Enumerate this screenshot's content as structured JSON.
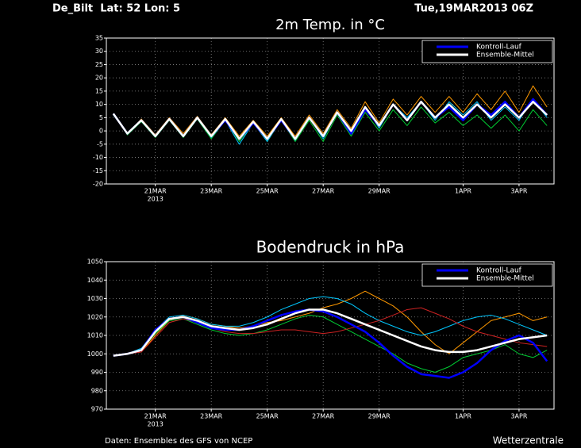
{
  "header": {
    "station": "De_Bilt  Lat: 52 Lon: 5",
    "run": "Tue,19MAR2013 06Z"
  },
  "footer": {
    "source": "Daten: Ensembles des GFS von NCEP",
    "brand": "Wetterzentrale"
  },
  "chart_data": [
    {
      "type": "line",
      "title": "2m Temp. in °C",
      "year": "2013",
      "legend": "upper right",
      "grid": true,
      "x": [
        19.5,
        20,
        20.5,
        21,
        21.5,
        22,
        22.5,
        23,
        23.5,
        24,
        24.5,
        25,
        25.5,
        26,
        26.5,
        27,
        27.5,
        28,
        28.5,
        29,
        29.5,
        30,
        30.5,
        31,
        31.5,
        32,
        32.5,
        33,
        33.5,
        34,
        34.5,
        35
      ],
      "xlim": [
        19.25,
        35.25
      ],
      "xticks": [
        {
          "value": 21,
          "label": "21MAR"
        },
        {
          "value": 23,
          "label": "23MAR"
        },
        {
          "value": 25,
          "label": "25MAR"
        },
        {
          "value": 27,
          "label": "27MAR"
        },
        {
          "value": 29,
          "label": "29MAR"
        },
        {
          "value": 32,
          "label": "1APR"
        },
        {
          "value": 34,
          "label": "3APR"
        }
      ],
      "ylim": [
        -20,
        35
      ],
      "yticks": [
        -20,
        -15,
        -10,
        -5,
        0,
        5,
        10,
        15,
        20,
        25,
        30,
        35
      ],
      "series": [
        {
          "color": "#ff9900",
          "values": [
            6.5,
            -1,
            4.5,
            -1.5,
            5,
            -1,
            5.5,
            -1.5,
            5,
            -2,
            4,
            -2,
            5,
            -2,
            6,
            -1,
            8,
            1,
            11,
            3,
            12,
            6,
            13,
            7,
            13,
            7,
            14,
            8,
            15,
            7,
            17,
            9
          ]
        },
        {
          "color": "#00cc33",
          "values": [
            6.5,
            -1.5,
            3.5,
            -2.5,
            4,
            -2.5,
            4.5,
            -3,
            4,
            -4,
            3,
            -4,
            4,
            -4,
            4,
            -4,
            6,
            -2,
            7,
            0,
            8,
            2,
            9,
            3,
            7,
            2,
            6,
            1,
            6,
            0,
            8,
            2
          ]
        },
        {
          "color": "#00c8ff",
          "values": [
            6,
            -1,
            4,
            -2,
            4.5,
            -2,
            5,
            -2.5,
            4,
            -5,
            3,
            -4,
            4.5,
            -3.5,
            5,
            -3,
            7,
            -1,
            9,
            1,
            10,
            5,
            11,
            4,
            11,
            6,
            11,
            4,
            9,
            4,
            12,
            5
          ]
        },
        {
          "name": "Kontroll-Lauf",
          "color": "#0000ff",
          "values": [
            6.5,
            -1,
            4,
            -2,
            4.5,
            -2,
            5,
            -2,
            4,
            -3,
            3,
            -3,
            4,
            -3,
            5,
            -2,
            7,
            -1,
            8,
            2,
            10,
            4,
            11,
            5,
            9,
            4,
            10,
            6,
            11,
            5,
            12,
            6
          ]
        },
        {
          "name": "Ensemble-Mittel",
          "color": "#ffffff",
          "values": [
            6.5,
            -1,
            4,
            -2,
            4.5,
            -2,
            5,
            -2,
            4.5,
            -3,
            3.5,
            -3,
            4.5,
            -3,
            5,
            -2,
            7,
            0,
            9,
            2,
            10,
            4,
            11,
            5,
            10,
            5,
            10,
            5,
            10,
            5,
            11,
            6
          ]
        }
      ]
    },
    {
      "type": "line",
      "title": "Bodendruck in hPa",
      "year": "2013",
      "legend": "upper right",
      "grid": true,
      "x": [
        19.5,
        20,
        20.5,
        21,
        21.5,
        22,
        22.5,
        23,
        23.5,
        24,
        24.5,
        25,
        25.5,
        26,
        26.5,
        27,
        27.5,
        28,
        28.5,
        29,
        29.5,
        30,
        30.5,
        31,
        31.5,
        32,
        32.5,
        33,
        33.5,
        34,
        34.5,
        35
      ],
      "xlim": [
        19.25,
        35.25
      ],
      "xticks": [
        {
          "value": 21,
          "label": "21MAR"
        },
        {
          "value": 23,
          "label": "23MAR"
        },
        {
          "value": 25,
          "label": "25MAR"
        },
        {
          "value": 27,
          "label": "27MAR"
        },
        {
          "value": 29,
          "label": "29MAR"
        },
        {
          "value": 32,
          "label": "1APR"
        },
        {
          "value": 34,
          "label": "3APR"
        }
      ],
      "ylim": [
        970,
        1050
      ],
      "yticks": [
        970,
        980,
        990,
        1000,
        1010,
        1020,
        1030,
        1040,
        1050
      ],
      "series": [
        {
          "color": "#ff9900",
          "values": [
            999,
            1000,
            1001,
            1010,
            1018,
            1021,
            1019,
            1016,
            1015,
            1014,
            1015,
            1017,
            1018,
            1020,
            1022,
            1025,
            1027,
            1030,
            1034,
            1030,
            1026,
            1020,
            1012,
            1005,
            1000,
            1006,
            1012,
            1018,
            1020,
            1022,
            1018,
            1020
          ]
        },
        {
          "color": "#00cc33",
          "values": [
            999,
            1000,
            1002,
            1011,
            1018,
            1019,
            1016,
            1013,
            1011,
            1010,
            1011,
            1013,
            1016,
            1019,
            1021,
            1020,
            1016,
            1012,
            1008,
            1004,
            1000,
            995,
            992,
            990,
            993,
            998,
            1000,
            1002,
            1005,
            1000,
            998,
            1002
          ]
        },
        {
          "color": "#00c8ff",
          "values": [
            999,
            1000,
            1003,
            1013,
            1020,
            1021,
            1019,
            1016,
            1015,
            1015,
            1017,
            1020,
            1024,
            1027,
            1030,
            1031,
            1030,
            1027,
            1022,
            1018,
            1015,
            1012,
            1010,
            1012,
            1015,
            1018,
            1020,
            1021,
            1019,
            1016,
            1013,
            1010
          ]
        },
        {
          "color": "#cc2222",
          "values": [
            999,
            1000,
            1001,
            1009,
            1017,
            1019,
            1017,
            1014,
            1012,
            1011,
            1011,
            1012,
            1013,
            1013,
            1012,
            1011,
            1012,
            1014,
            1016,
            1018,
            1021,
            1024,
            1025,
            1022,
            1019,
            1015,
            1012,
            1010,
            1008,
            1006,
            1005,
            1004
          ]
        },
        {
          "name": "Kontroll-Lauf",
          "color": "#0000ff",
          "values": [
            999,
            1000,
            1002,
            1013,
            1019,
            1020,
            1017,
            1014,
            1013,
            1013,
            1015,
            1018,
            1021,
            1023,
            1024,
            1023,
            1020,
            1016,
            1012,
            1006,
            999,
            993,
            989,
            988,
            987,
            990,
            995,
            1002,
            1007,
            1010,
            1006,
            996
          ]
        },
        {
          "name": "Ensemble-Mittel",
          "color": "#ffffff",
          "values": [
            999,
            1000,
            1002,
            1012,
            1019,
            1020,
            1018,
            1015,
            1014,
            1013,
            1014,
            1016,
            1019,
            1022,
            1024,
            1024,
            1022,
            1019,
            1016,
            1013,
            1010,
            1007,
            1004,
            1002,
            1001,
            1001,
            1002,
            1004,
            1006,
            1008,
            1009,
            1010
          ]
        }
      ]
    }
  ]
}
